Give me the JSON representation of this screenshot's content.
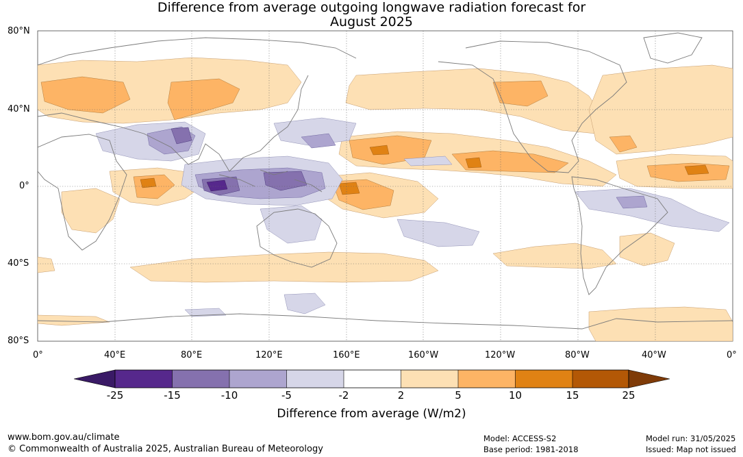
{
  "title_line1": "Difference from average outgoing longwave radiation forecast for",
  "title_line2": "August 2025",
  "lat_labels": [
    "80°N",
    "40°N",
    "0°",
    "40°S",
    "80°S"
  ],
  "lon_labels": [
    "0°",
    "40°E",
    "80°E",
    "120°E",
    "160°E",
    "160°W",
    "120°W",
    "80°W",
    "40°W",
    "0°"
  ],
  "colorbar": {
    "ticks": [
      "-25",
      "-15",
      "-10",
      "-5",
      "-2",
      "2",
      "5",
      "10",
      "15",
      "25"
    ],
    "colors": [
      "#3a1a66",
      "#56288c",
      "#8571ae",
      "#ada5cf",
      "#d6d6e8",
      "#ffffff",
      "#fde0b4",
      "#fdb465",
      "#e08214",
      "#b35806",
      "#7f3b08"
    ],
    "label": "Difference from average (W/m2)"
  },
  "footer": {
    "website": "www.bom.gov.au/climate",
    "copyright": "© Commonwealth of Australia 2025, Australian Bureau of Meteorology",
    "model": "Model: ACCESS-S2",
    "base_period": "Base period: 1981-2018",
    "model_run": "Model run: 31/05/2025",
    "issued": "Issued: Map not issued"
  }
}
